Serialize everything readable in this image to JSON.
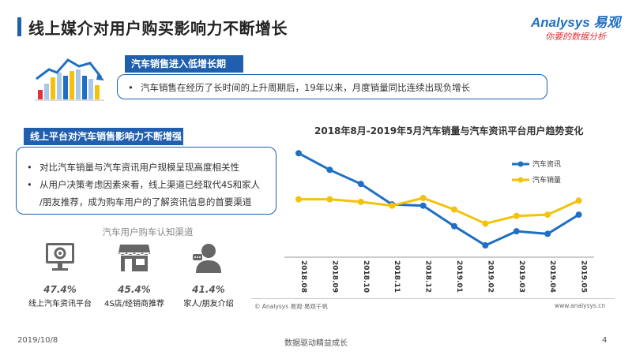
{
  "header": {
    "title": "线上媒介对用户购买影响力不断增长",
    "logo_main": "Analysys 易观",
    "logo_sub": "你要的数据分析"
  },
  "section1": {
    "tag": "汽车销售进入低增长期",
    "bullet": "汽车销售在经历了长时间的上升周期后，19年以来，月度销量同比连续出现负增长"
  },
  "section2": {
    "tag": "线上平台对汽车销售影响力不断增强",
    "bullets": [
      "对比汽车销量与汽车资讯用户规模呈现高度相关性",
      "从用户决策考虑因素来看，线上渠道已经取代4S和家人",
      "/朋友推荐，成为购车用户的了解资讯信息的首要渠道"
    ]
  },
  "channels": {
    "title": "汽车用户购车认知渠道",
    "items": [
      {
        "value": "47.4%",
        "label": "线上汽车资讯平台",
        "icon": "monitor-gear-icon"
      },
      {
        "value": "45.4%",
        "label": "4S店/经销商推荐",
        "icon": "store-icon"
      },
      {
        "value": "41.4%",
        "label": "家人/朋友介绍",
        "icon": "person-chat-icon"
      }
    ]
  },
  "chart_data": {
    "type": "line",
    "title": "2018年8月-2019年5月汽车销量与汽车资讯平台用户趋势变化",
    "categories": [
      "2018.08",
      "2018.09",
      "2018.10",
      "2018.11",
      "2018.12",
      "2019.01",
      "2019.02",
      "2019.03",
      "2019.04",
      "2019.05"
    ],
    "series": [
      {
        "name": "汽车资讯",
        "color": "#1f6fc4",
        "values": [
          100,
          87,
          76,
          60,
          59,
          43,
          28,
          39,
          37,
          52
        ]
      },
      {
        "name": "汽车销量",
        "color": "#f4c20d",
        "values": [
          64,
          64,
          62,
          59,
          65,
          56,
          45,
          51,
          52,
          63
        ]
      }
    ],
    "ylim": [
      20,
      110
    ],
    "grid": false,
    "legend": "right"
  },
  "footer": {
    "source": "© Analysys 易观·易观千帆",
    "site": "www.analysys.cn",
    "date": "2019/10/8",
    "slogan": "数据驱动精益成长",
    "page": "4"
  }
}
